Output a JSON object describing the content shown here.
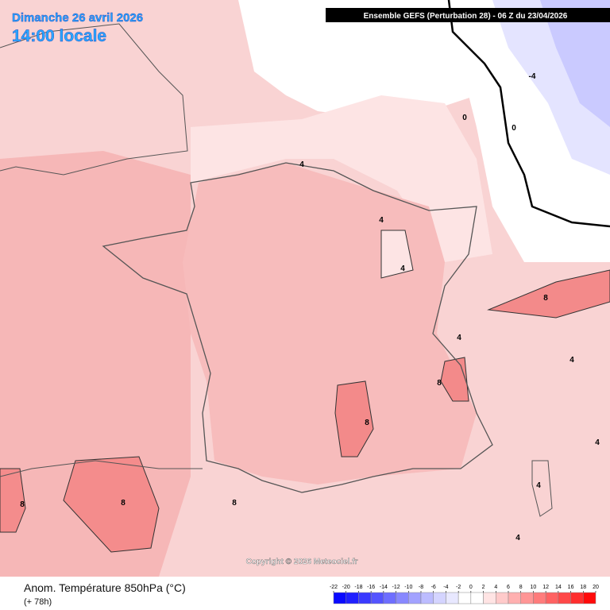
{
  "header": {
    "date": "Dimanche 26 avril 2026",
    "time": "14:00 locale",
    "run": "Ensemble GEFS  (Perturbation 28)  -  06 Z du 23/04/2026"
  },
  "copyright": "Copyright © 2026 Meteociel.fr",
  "footer": {
    "title": "Anom. Température 850hPa (°C)",
    "lead": "(+ 78h)"
  },
  "contour_labels": [
    4,
    4,
    4,
    0,
    0,
    -4,
    8,
    4,
    4,
    8,
    8,
    8,
    8,
    8,
    4,
    4,
    4
  ],
  "colorbar": {
    "ticks": [
      -22,
      -20,
      -18,
      -16,
      -14,
      -12,
      -10,
      -8,
      -6,
      -4,
      -2,
      0,
      2,
      4,
      6,
      8,
      10,
      12,
      14,
      16,
      18,
      20
    ],
    "colors": [
      "#0a0aff",
      "#2020ff",
      "#3a3aff",
      "#5454ff",
      "#6e6eff",
      "#8888ff",
      "#a2a2ff",
      "#bcbcff",
      "#d4d4ff",
      "#e8e8ff",
      "#ffffff",
      "#ffffff",
      "#ffe4e4",
      "#ffcaca",
      "#ffb0b0",
      "#ff9696",
      "#ff7c7c",
      "#ff6262",
      "#ff4848",
      "#ff2e2e",
      "#ff0a0a"
    ]
  }
}
